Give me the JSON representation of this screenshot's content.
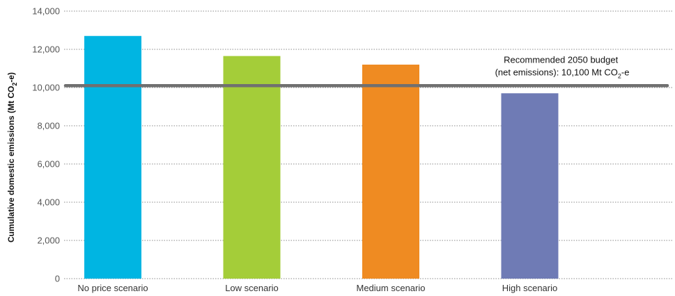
{
  "chart_data": {
    "type": "bar",
    "categories": [
      "No price scenario",
      "Low scenario",
      "Medium scenario",
      "High scenario"
    ],
    "values": [
      12700,
      11650,
      11200,
      9700
    ],
    "colors": [
      "#00b5e2",
      "#a4cd39",
      "#ef8b22",
      "#6f7bb5"
    ],
    "ylabel": {
      "main": "Cumulative domestic emissions (Mt CO",
      "sub": "2",
      "tail": "-e)"
    },
    "ylim": [
      0,
      14000
    ],
    "yticks": [
      0,
      2000,
      4000,
      6000,
      8000,
      10000,
      12000,
      14000
    ],
    "ytick_labels": [
      "0",
      "2,000",
      "4,000",
      "6,000",
      "8,000",
      "10,000",
      "12,000",
      "14,000"
    ],
    "grid": "horizontal dotted",
    "reference_line": {
      "value": 10100,
      "color": "#707070",
      "label_line1": "Recommended 2050 budget",
      "label_line2_main": "(net emissions): 10,100 Mt CO",
      "label_line2_sub": "2",
      "label_line2_tail": "-e"
    }
  }
}
